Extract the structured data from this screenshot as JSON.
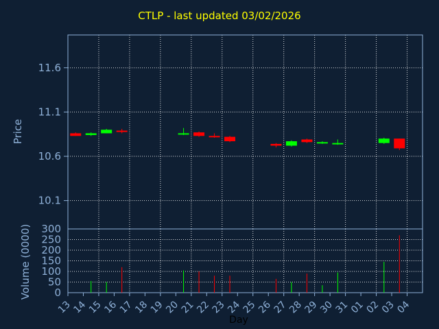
{
  "title": "CTLP - last updated 03/02/2026",
  "chart_data": {
    "type": "candlestick",
    "ylabel": "Price",
    "ylabel2": "Volume (0000)",
    "xlabel": "Day",
    "price_ticks": [
      "11.6",
      "11.1",
      "10.6",
      "10.1"
    ],
    "volume_ticks": [
      "300",
      "250",
      "200",
      "150",
      "100",
      "50",
      "0"
    ],
    "price_ylim": [
      9.78,
      11.97
    ],
    "volume_ylim": [
      0,
      300
    ],
    "x_labels": [
      "13",
      "14",
      "15",
      "16",
      "17",
      "18",
      "19",
      "20",
      "21",
      "22",
      "23",
      "24",
      "25",
      "26",
      "27",
      "28",
      "29",
      "30",
      "31",
      "01",
      "02",
      "03",
      "04"
    ],
    "grid": true,
    "colors": {
      "up": "#00ff00",
      "down": "#ff0000",
      "grid": "#ffffff",
      "axis": "#8fb1d8",
      "title": "#ffff00",
      "background": "#0f1f33"
    },
    "candles": [
      {
        "day": "13",
        "idx": 0,
        "open": 10.86,
        "high": 10.87,
        "low": 10.83,
        "close": 10.83,
        "volume": 0
      },
      {
        "day": "14",
        "idx": 1,
        "open": 10.84,
        "high": 10.87,
        "low": 10.83,
        "close": 10.86,
        "volume": 55
      },
      {
        "day": "15",
        "idx": 2,
        "open": 10.86,
        "high": 10.91,
        "low": 10.86,
        "close": 10.9,
        "volume": 50
      },
      {
        "day": "16",
        "idx": 3,
        "open": 10.89,
        "high": 10.91,
        "low": 10.86,
        "close": 10.88,
        "volume": 120
      },
      {
        "day": "20",
        "idx": 7,
        "open": 10.85,
        "high": 10.92,
        "low": 10.84,
        "close": 10.86,
        "volume": 105
      },
      {
        "day": "21",
        "idx": 8,
        "open": 10.87,
        "high": 10.88,
        "low": 10.82,
        "close": 10.83,
        "volume": 100
      },
      {
        "day": "22",
        "idx": 9,
        "open": 10.83,
        "high": 10.86,
        "low": 10.81,
        "close": 10.82,
        "volume": 80
      },
      {
        "day": "23",
        "idx": 10,
        "open": 10.82,
        "high": 10.83,
        "low": 10.76,
        "close": 10.77,
        "volume": 80
      },
      {
        "day": "26",
        "idx": 13,
        "open": 10.74,
        "high": 10.75,
        "low": 10.7,
        "close": 10.72,
        "volume": 65
      },
      {
        "day": "27",
        "idx": 14,
        "open": 10.72,
        "high": 10.78,
        "low": 10.71,
        "close": 10.77,
        "volume": 50
      },
      {
        "day": "28",
        "idx": 15,
        "open": 10.79,
        "high": 10.8,
        "low": 10.75,
        "close": 10.76,
        "volume": 90
      },
      {
        "day": "29",
        "idx": 16,
        "open": 10.75,
        "high": 10.77,
        "low": 10.74,
        "close": 10.76,
        "volume": 35
      },
      {
        "day": "30",
        "idx": 17,
        "open": 10.74,
        "high": 10.79,
        "low": 10.73,
        "close": 10.75,
        "volume": 95
      },
      {
        "day": "02",
        "idx": 20,
        "open": 10.75,
        "high": 10.81,
        "low": 10.74,
        "close": 10.8,
        "volume": 145
      },
      {
        "day": "03",
        "idx": 21,
        "open": 10.8,
        "high": 10.8,
        "low": 10.67,
        "close": 10.69,
        "volume": 270
      }
    ]
  }
}
